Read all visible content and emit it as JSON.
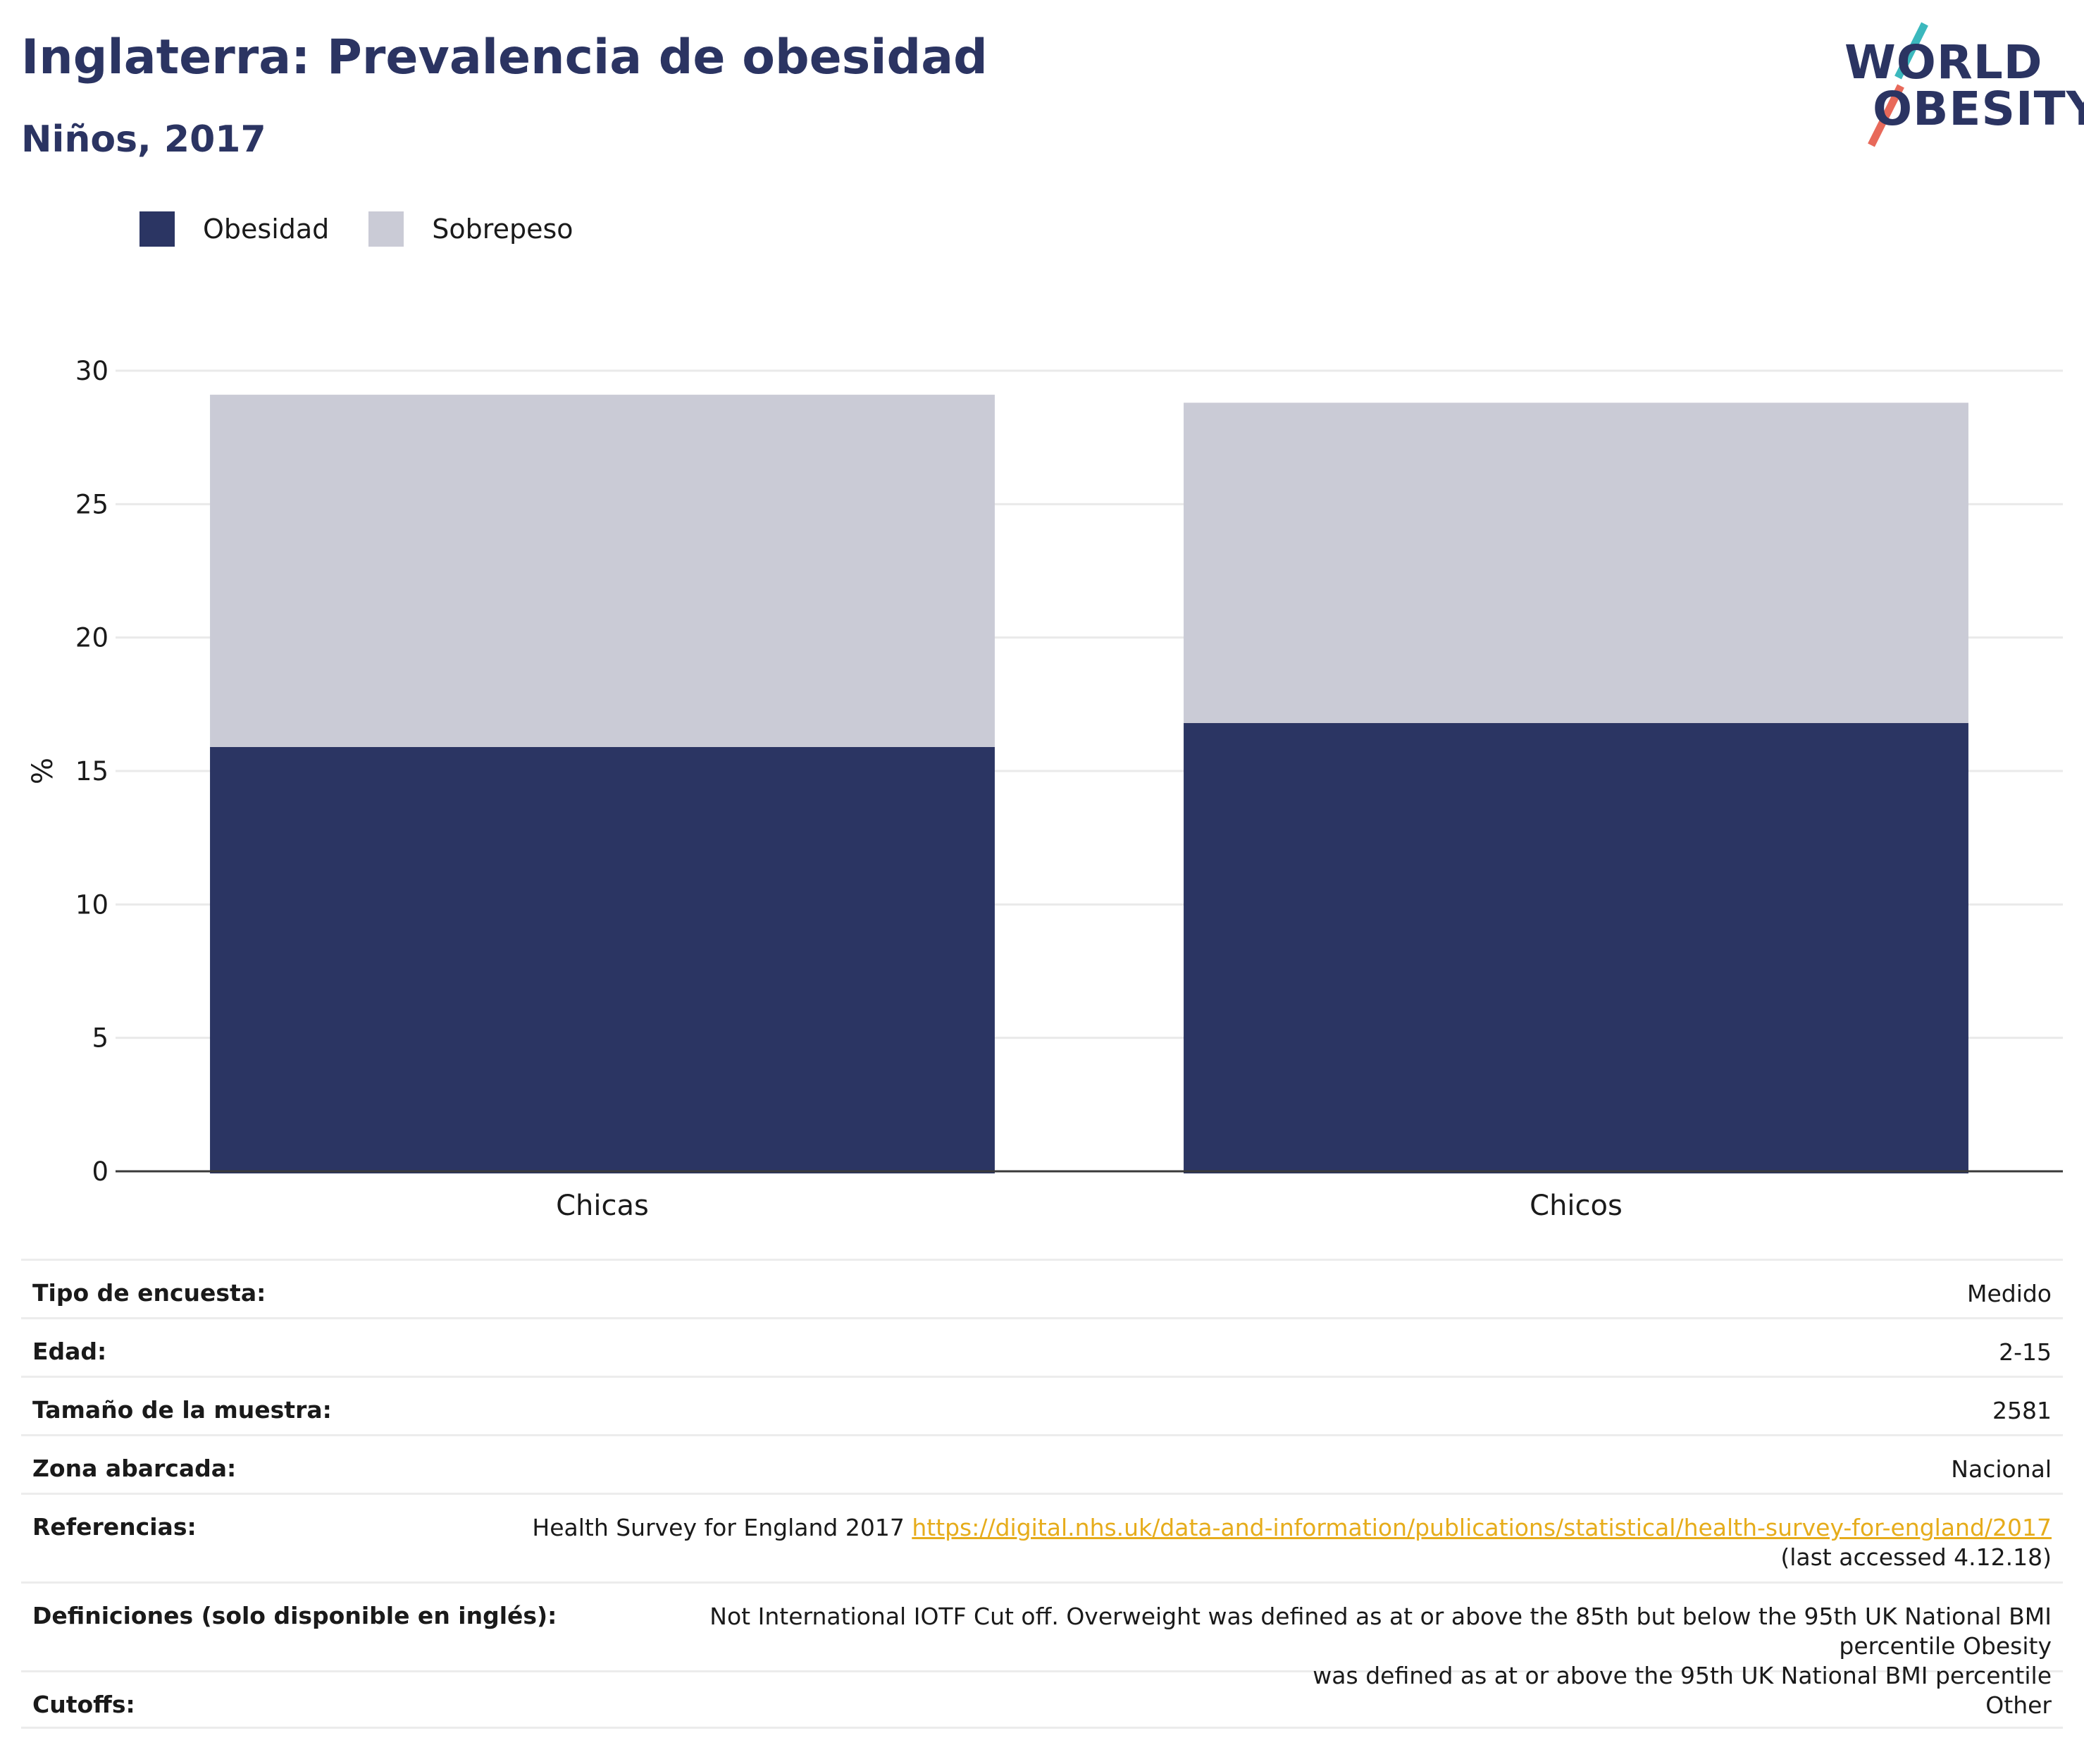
{
  "header": {
    "title": "Inglaterra: Prevalencia de obesidad",
    "subtitle": "Niños, 2017"
  },
  "logo": {
    "line1": "WORLD",
    "line2": "OBESITY",
    "accent_teal": "#3bb8bd",
    "accent_red": "#e8695a"
  },
  "legend": [
    {
      "label": "Obesidad",
      "color": "#2b3563"
    },
    {
      "label": "Sobrepeso",
      "color": "#cacbd6"
    }
  ],
  "chart_data": {
    "type": "bar",
    "stacked": true,
    "categories": [
      "Chicas",
      "Chicos"
    ],
    "series": [
      {
        "name": "Obesidad",
        "values": [
          15.9,
          16.8
        ],
        "color": "#2b3563"
      },
      {
        "name": "Sobrepeso",
        "values": [
          13.2,
          12.0
        ],
        "color": "#cacbd6"
      }
    ],
    "ylabel": "%",
    "ylim": [
      0,
      30
    ],
    "yticks": [
      0,
      5,
      10,
      15,
      20,
      25,
      30
    ],
    "grid": true,
    "legend_position": "top-left"
  },
  "info": {
    "survey_type": {
      "label": "Tipo de encuesta:",
      "value": "Medido"
    },
    "age": {
      "label": "Edad:",
      "value": "2-15"
    },
    "sample_size": {
      "label": "Tamaño de la muestra:",
      "value": "2581"
    },
    "area": {
      "label": "Zona abarcada:",
      "value": "Nacional"
    },
    "references": {
      "label": "Referencias:",
      "text": "Health Survey for England 2017",
      "link": "https://digital.nhs.uk/data-and-information/publications/statistical/health-survey-for-england/2017",
      "note": "(last accessed 4.12.18)"
    },
    "definitions": {
      "label": "Definiciones (solo disponible en inglés):",
      "line1": "Not International IOTF Cut off. Overweight was defined as at or above the 85th but below the 95th UK National BMI percentile Obesity",
      "line2": "was defined as at or above the 95th UK National BMI percentile"
    },
    "cutoffs": {
      "label": "Cutoffs:",
      "value": "Other"
    }
  }
}
